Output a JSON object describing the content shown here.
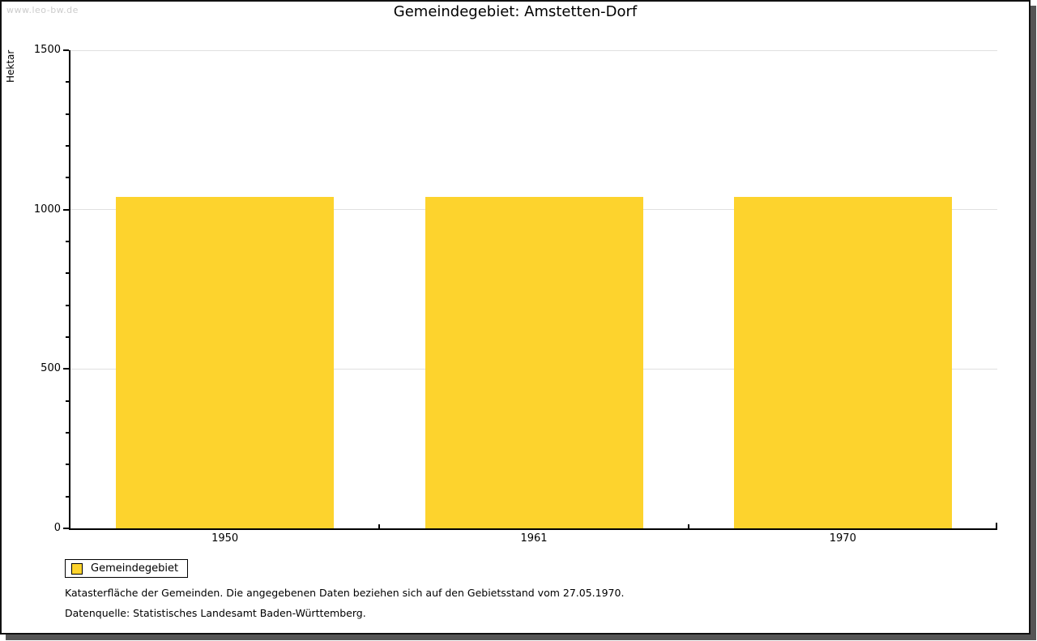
{
  "watermark": "www.leo-bw.de",
  "chart_data": {
    "type": "bar",
    "title": "Gemeindegebiet: Amstetten-Dorf",
    "categories": [
      "1950",
      "1961",
      "1970"
    ],
    "values": [
      1040,
      1040,
      1040
    ],
    "series_name": "Gemeindegebiet",
    "xlabel": "",
    "ylabel": "Hektar",
    "ylim": [
      0,
      1500
    ],
    "ytick_major": 500,
    "ytick_minor": 100,
    "ytick_labels": [
      "0",
      "500",
      "1000",
      "1500"
    ],
    "grid": "horizontal-major",
    "legend": [
      "Gemeindegebiet"
    ],
    "legend_position": "bottom-left"
  },
  "colors": {
    "bar": "#FDD32D",
    "grid": "#E0E0E0",
    "axis": "#000000",
    "watermark": "#CCCCCC",
    "shadow": "#555555"
  },
  "footnotes": [
    "Katasterfläche der Gemeinden. Die angegebenen Daten beziehen sich auf den Gebietsstand vom 27.05.1970.",
    "Datenquelle: Statistisches Landesamt Baden-Württemberg."
  ]
}
